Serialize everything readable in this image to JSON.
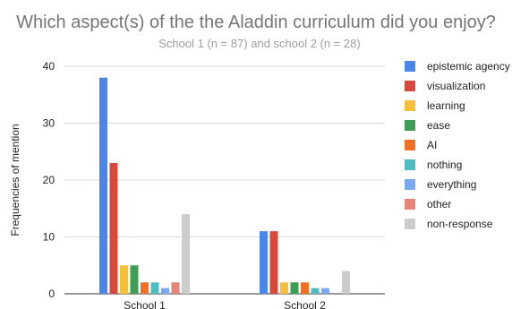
{
  "chart_data": {
    "type": "bar",
    "title": "Which aspect(s) of the the Aladdin curriculum did you enjoy?",
    "subtitle": "School 1 (n = 87) and school 2 (n = 28)",
    "xlabel": "",
    "ylabel": "Frequencies of mention",
    "ylim": [
      0,
      40
    ],
    "yticks": [
      0,
      10,
      20,
      30,
      40
    ],
    "grid": true,
    "legend_position": "right",
    "categories": [
      "School 1",
      "School 2"
    ],
    "series": [
      {
        "name": "epistemic agency",
        "color": "#4a86e8",
        "values": [
          38,
          11
        ]
      },
      {
        "name": "visualization",
        "color": "#d8493b",
        "values": [
          23,
          11
        ]
      },
      {
        "name": "learning",
        "color": "#f6bf3a",
        "values": [
          5,
          2
        ]
      },
      {
        "name": "ease",
        "color": "#3e9e55",
        "values": [
          5,
          2
        ]
      },
      {
        "name": "AI",
        "color": "#f06f22",
        "values": [
          2,
          2
        ]
      },
      {
        "name": "nothing",
        "color": "#4fbcbf",
        "values": [
          2,
          1
        ]
      },
      {
        "name": "everything",
        "color": "#7ba8f0",
        "values": [
          1,
          1
        ]
      },
      {
        "name": "other",
        "color": "#e8837a",
        "values": [
          2,
          0
        ]
      },
      {
        "name": "non-response",
        "color": "#cccccc",
        "values": [
          14,
          4
        ]
      }
    ]
  }
}
